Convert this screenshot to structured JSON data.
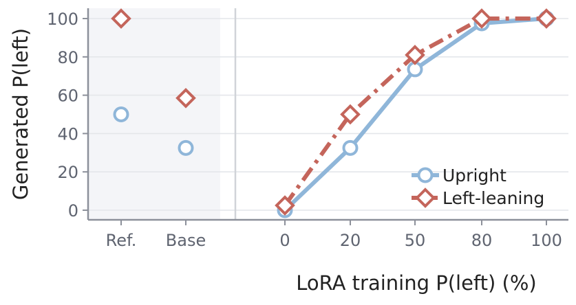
{
  "chart_data": {
    "type": "line",
    "ylabel": "Generated P(left)",
    "xlabel": "LoRA training P(left) (%)",
    "ylim": [
      -5,
      105
    ],
    "yticks": [
      0,
      20,
      40,
      60,
      80,
      100
    ],
    "grid": true,
    "legend_position": "bottom-right",
    "reference_categories": [
      "Ref.",
      "Base"
    ],
    "x": [
      "0",
      "20",
      "50",
      "80",
      "100"
    ],
    "series": [
      {
        "name": "Upright",
        "color": "#8fb6d9",
        "marker": "circle",
        "line_style": "solid",
        "reference_values": [
          50,
          32.5
        ],
        "values": [
          0,
          32.5,
          73.5,
          97.5,
          100
        ]
      },
      {
        "name": "Left-leaning",
        "color": "#c4655b",
        "marker": "diamond",
        "line_style": "dash-dot",
        "reference_values": [
          100,
          58.5
        ],
        "values": [
          2.5,
          50,
          81,
          100,
          100
        ]
      }
    ]
  }
}
